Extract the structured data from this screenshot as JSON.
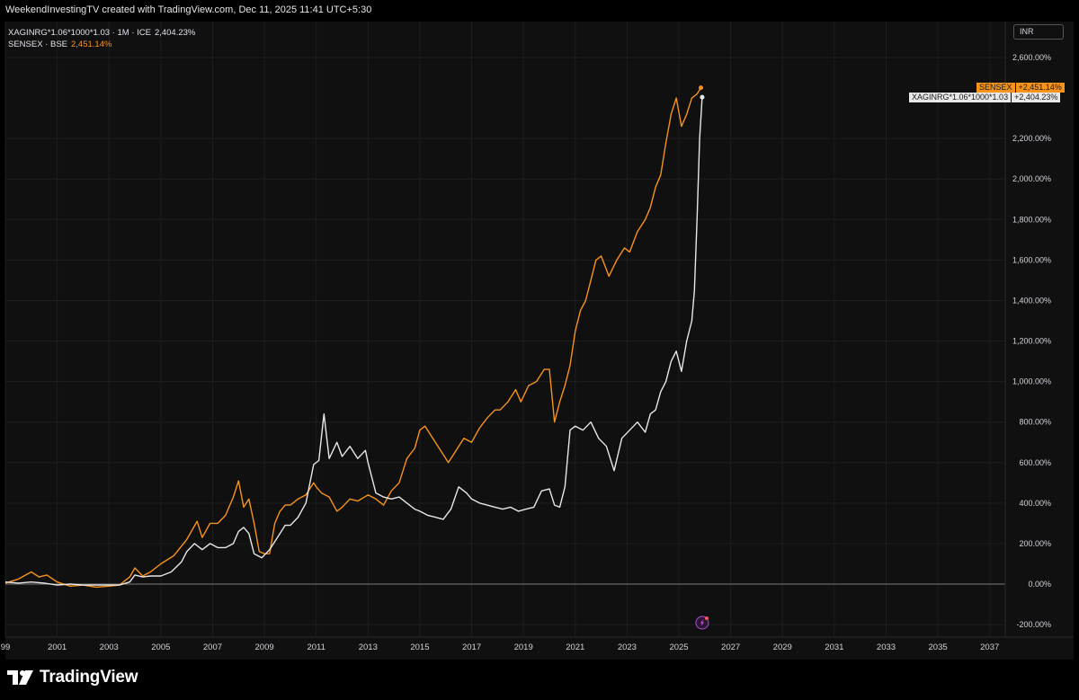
{
  "header": {
    "credit": "WeekendInvestingTV created with TradingView.com, Dec 11, 2025 11:41 UTC+5:30"
  },
  "legend": {
    "series1_name": "XAGINRG*1.06*1000*1.03 · 1M · ICE",
    "series1_value": "2,404.23%",
    "series2_name": "SENSEX · BSE",
    "series2_value": "2,451.14%"
  },
  "currency_button": "INR",
  "price_labels": {
    "sensex_name": "SENSEX",
    "sensex_value": "+2,451.14%",
    "silver_name": "XAGINRG*1.06*1000*1.03",
    "silver_value": "+2,404.23%"
  },
  "footer": {
    "brand": "TradingView"
  },
  "colors": {
    "sensex": "#f7931a",
    "silver": "#e8e8e8",
    "background": "#101010",
    "grid": "#1e1e1e"
  },
  "chart_data": {
    "type": "line",
    "y_unit": "%",
    "ylim": [
      -250,
      2650
    ],
    "xlim": [
      1999.0,
      2037.6
    ],
    "yticks": [
      "2,600.00%",
      "2,200.00%",
      "2,000.00%",
      "1,800.00%",
      "1,600.00%",
      "1,400.00%",
      "1,200.00%",
      "1,000.00%",
      "800.00%",
      "600.00%",
      "400.00%",
      "200.00%",
      "0.00%",
      "-200.00%"
    ],
    "ytick_values": [
      2600,
      2200,
      2000,
      1800,
      1600,
      1400,
      1200,
      1000,
      800,
      600,
      400,
      200,
      0,
      -200
    ],
    "xticks": [
      "99",
      "2001",
      "2003",
      "2005",
      "2007",
      "2009",
      "2011",
      "2013",
      "2015",
      "2017",
      "2019",
      "2021",
      "2023",
      "2025",
      "2027",
      "2029",
      "2031",
      "2033",
      "2035",
      "2037"
    ],
    "xtick_values": [
      1999,
      2001,
      2003,
      2005,
      2007,
      2009,
      2011,
      2013,
      2015,
      2017,
      2019,
      2021,
      2023,
      2025,
      2027,
      2029,
      2031,
      2033,
      2035,
      2037
    ],
    "grid": true,
    "series": [
      {
        "name": "SENSEX",
        "color": "#f7931a",
        "points": [
          [
            1999.0,
            5
          ],
          [
            1999.5,
            25
          ],
          [
            2000.0,
            60
          ],
          [
            2000.3,
            35
          ],
          [
            2000.6,
            45
          ],
          [
            2001.0,
            10
          ],
          [
            2001.5,
            -10
          ],
          [
            2002.0,
            -5
          ],
          [
            2002.5,
            -15
          ],
          [
            2003.0,
            -10
          ],
          [
            2003.4,
            -5
          ],
          [
            2003.8,
            35
          ],
          [
            2004.0,
            80
          ],
          [
            2004.3,
            40
          ],
          [
            2004.6,
            60
          ],
          [
            2005.0,
            100
          ],
          [
            2005.5,
            140
          ],
          [
            2006.0,
            220
          ],
          [
            2006.4,
            310
          ],
          [
            2006.6,
            230
          ],
          [
            2006.9,
            300
          ],
          [
            2007.2,
            300
          ],
          [
            2007.5,
            340
          ],
          [
            2007.8,
            430
          ],
          [
            2008.0,
            510
          ],
          [
            2008.2,
            380
          ],
          [
            2008.4,
            420
          ],
          [
            2008.6,
            300
          ],
          [
            2008.8,
            160
          ],
          [
            2009.0,
            150
          ],
          [
            2009.2,
            150
          ],
          [
            2009.4,
            300
          ],
          [
            2009.6,
            360
          ],
          [
            2009.8,
            390
          ],
          [
            2010.0,
            390
          ],
          [
            2010.3,
            420
          ],
          [
            2010.6,
            440
          ],
          [
            2010.9,
            500
          ],
          [
            2011.0,
            480
          ],
          [
            2011.2,
            450
          ],
          [
            2011.5,
            430
          ],
          [
            2011.8,
            360
          ],
          [
            2012.0,
            380
          ],
          [
            2012.3,
            420
          ],
          [
            2012.6,
            410
          ],
          [
            2013.0,
            440
          ],
          [
            2013.3,
            420
          ],
          [
            2013.6,
            390
          ],
          [
            2013.9,
            460
          ],
          [
            2014.2,
            500
          ],
          [
            2014.5,
            620
          ],
          [
            2014.8,
            670
          ],
          [
            2015.0,
            760
          ],
          [
            2015.2,
            780
          ],
          [
            2015.5,
            720
          ],
          [
            2015.8,
            660
          ],
          [
            2016.1,
            600
          ],
          [
            2016.4,
            660
          ],
          [
            2016.7,
            720
          ],
          [
            2017.0,
            700
          ],
          [
            2017.3,
            770
          ],
          [
            2017.6,
            820
          ],
          [
            2017.9,
            860
          ],
          [
            2018.1,
            860
          ],
          [
            2018.4,
            900
          ],
          [
            2018.7,
            960
          ],
          [
            2018.9,
            900
          ],
          [
            2019.2,
            980
          ],
          [
            2019.5,
            1000
          ],
          [
            2019.8,
            1060
          ],
          [
            2020.0,
            1060
          ],
          [
            2020.2,
            800
          ],
          [
            2020.4,
            900
          ],
          [
            2020.6,
            980
          ],
          [
            2020.8,
            1080
          ],
          [
            2021.0,
            1250
          ],
          [
            2021.2,
            1350
          ],
          [
            2021.4,
            1400
          ],
          [
            2021.6,
            1500
          ],
          [
            2021.8,
            1600
          ],
          [
            2022.0,
            1620
          ],
          [
            2022.3,
            1520
          ],
          [
            2022.6,
            1600
          ],
          [
            2022.9,
            1660
          ],
          [
            2023.1,
            1640
          ],
          [
            2023.4,
            1740
          ],
          [
            2023.7,
            1800
          ],
          [
            2023.9,
            1860
          ],
          [
            2024.1,
            1960
          ],
          [
            2024.3,
            2020
          ],
          [
            2024.5,
            2180
          ],
          [
            2024.7,
            2320
          ],
          [
            2024.9,
            2400
          ],
          [
            2025.1,
            2260
          ],
          [
            2025.3,
            2320
          ],
          [
            2025.5,
            2400
          ],
          [
            2025.7,
            2420
          ],
          [
            2025.85,
            2451
          ]
        ]
      },
      {
        "name": "XAGINRG*1.06*1000*1.03",
        "color": "#e8e8e8",
        "points": [
          [
            1999.0,
            10
          ],
          [
            1999.5,
            5
          ],
          [
            2000.0,
            10
          ],
          [
            2000.5,
            5
          ],
          [
            2001.0,
            -5
          ],
          [
            2001.5,
            0
          ],
          [
            2002.0,
            -5
          ],
          [
            2002.5,
            -5
          ],
          [
            2003.0,
            -5
          ],
          [
            2003.4,
            -5
          ],
          [
            2003.8,
            10
          ],
          [
            2004.0,
            45
          ],
          [
            2004.3,
            35
          ],
          [
            2004.6,
            40
          ],
          [
            2005.0,
            40
          ],
          [
            2005.4,
            60
          ],
          [
            2005.8,
            110
          ],
          [
            2006.0,
            160
          ],
          [
            2006.3,
            200
          ],
          [
            2006.6,
            170
          ],
          [
            2006.9,
            200
          ],
          [
            2007.2,
            180
          ],
          [
            2007.5,
            180
          ],
          [
            2007.8,
            200
          ],
          [
            2008.0,
            260
          ],
          [
            2008.2,
            280
          ],
          [
            2008.4,
            250
          ],
          [
            2008.6,
            150
          ],
          [
            2008.9,
            130
          ],
          [
            2009.2,
            170
          ],
          [
            2009.5,
            230
          ],
          [
            2009.8,
            290
          ],
          [
            2010.0,
            290
          ],
          [
            2010.3,
            330
          ],
          [
            2010.6,
            400
          ],
          [
            2010.9,
            590
          ],
          [
            2011.1,
            610
          ],
          [
            2011.3,
            840
          ],
          [
            2011.5,
            620
          ],
          [
            2011.8,
            700
          ],
          [
            2012.0,
            630
          ],
          [
            2012.3,
            680
          ],
          [
            2012.6,
            620
          ],
          [
            2012.9,
            660
          ],
          [
            2013.0,
            600
          ],
          [
            2013.3,
            450
          ],
          [
            2013.6,
            430
          ],
          [
            2013.9,
            420
          ],
          [
            2014.2,
            430
          ],
          [
            2014.5,
            400
          ],
          [
            2014.8,
            370
          ],
          [
            2015.0,
            360
          ],
          [
            2015.3,
            340
          ],
          [
            2015.6,
            330
          ],
          [
            2015.9,
            320
          ],
          [
            2016.2,
            370
          ],
          [
            2016.5,
            480
          ],
          [
            2016.8,
            450
          ],
          [
            2017.0,
            420
          ],
          [
            2017.3,
            400
          ],
          [
            2017.6,
            390
          ],
          [
            2017.9,
            380
          ],
          [
            2018.2,
            370
          ],
          [
            2018.5,
            380
          ],
          [
            2018.8,
            360
          ],
          [
            2019.1,
            370
          ],
          [
            2019.4,
            380
          ],
          [
            2019.7,
            460
          ],
          [
            2020.0,
            470
          ],
          [
            2020.2,
            390
          ],
          [
            2020.4,
            380
          ],
          [
            2020.6,
            480
          ],
          [
            2020.8,
            760
          ],
          [
            2021.0,
            780
          ],
          [
            2021.3,
            760
          ],
          [
            2021.6,
            800
          ],
          [
            2021.9,
            720
          ],
          [
            2022.2,
            680
          ],
          [
            2022.5,
            560
          ],
          [
            2022.8,
            720
          ],
          [
            2023.1,
            760
          ],
          [
            2023.4,
            800
          ],
          [
            2023.7,
            750
          ],
          [
            2023.9,
            840
          ],
          [
            2024.1,
            860
          ],
          [
            2024.3,
            950
          ],
          [
            2024.5,
            1000
          ],
          [
            2024.7,
            1100
          ],
          [
            2024.9,
            1150
          ],
          [
            2025.1,
            1050
          ],
          [
            2025.3,
            1200
          ],
          [
            2025.5,
            1300
          ],
          [
            2025.6,
            1450
          ],
          [
            2025.7,
            1800
          ],
          [
            2025.8,
            2200
          ],
          [
            2025.9,
            2404
          ]
        ]
      }
    ],
    "markers": [
      {
        "type": "lightning-marker",
        "x": 2025.9
      }
    ]
  }
}
